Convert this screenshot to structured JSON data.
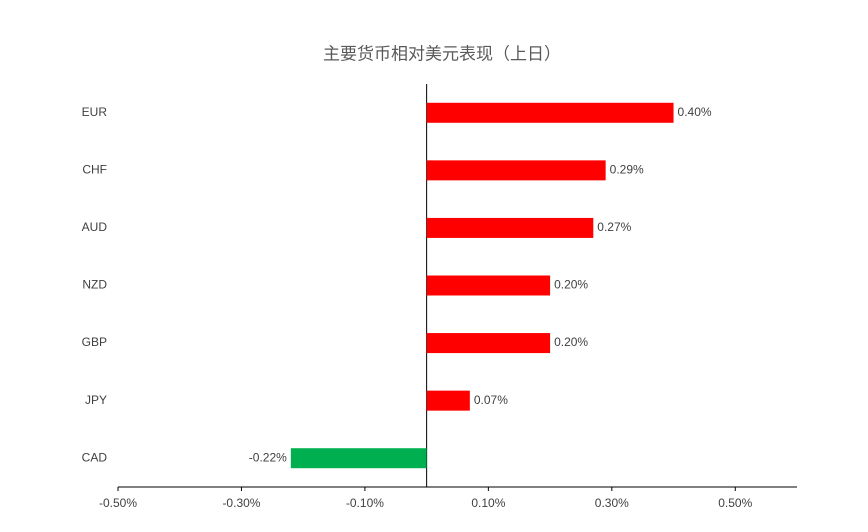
{
  "chart_data": {
    "type": "hbar",
    "title": "主要货币相对美元表现（上日）",
    "categories": [
      "EUR",
      "CHF",
      "AUD",
      "NZD",
      "GBP",
      "JPY",
      "CAD"
    ],
    "values": [
      0.4,
      0.29,
      0.27,
      0.2,
      0.2,
      0.07,
      -0.22
    ],
    "value_labels": [
      "0.40%",
      "0.29%",
      "0.27%",
      "0.20%",
      "0.20%",
      "0.07%",
      "-0.22%"
    ],
    "colors": [
      "#ff0000",
      "#ff0000",
      "#ff0000",
      "#ff0000",
      "#ff0000",
      "#ff0000",
      "#00b050"
    ],
    "xlim": [
      -0.5,
      0.6
    ],
    "xticks": [
      {
        "value": -0.5,
        "label": "-0.50%"
      },
      {
        "value": -0.3,
        "label": "-0.30%"
      },
      {
        "value": -0.1,
        "label": "-0.10%"
      },
      {
        "value": 0.1,
        "label": "0.10%"
      },
      {
        "value": 0.3,
        "label": "0.30%"
      },
      {
        "value": 0.5,
        "label": "0.50%"
      }
    ]
  }
}
